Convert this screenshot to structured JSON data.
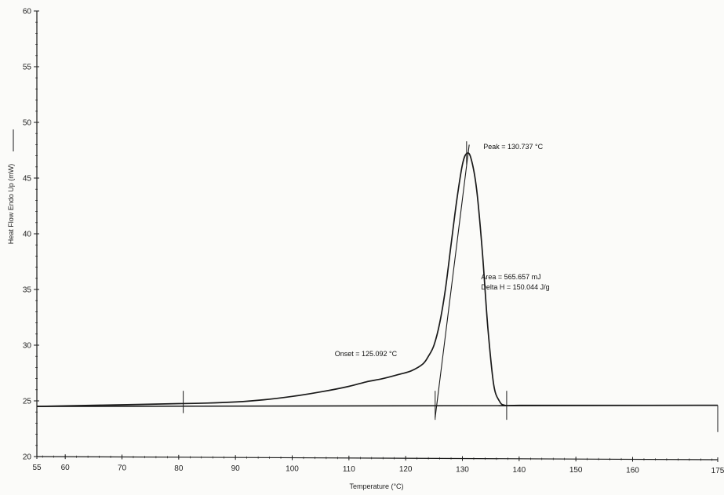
{
  "chart_data": {
    "type": "line",
    "xlabel": "Temperature (°C)",
    "ylabel": "Heat Flow Endo Up (mW)",
    "xlim": [
      55,
      175
    ],
    "ylim": [
      20,
      60
    ],
    "x_ticks": [
      55,
      60,
      70,
      80,
      90,
      100,
      110,
      120,
      130,
      140,
      150,
      160,
      175
    ],
    "y_ticks": [
      20,
      25,
      30,
      35,
      40,
      45,
      50,
      55,
      60
    ],
    "grid": false,
    "series": [
      {
        "x": [
          55,
          60,
          70,
          80,
          85,
          90,
          95,
          100,
          105,
          110,
          113,
          116,
          119,
          121,
          123,
          124,
          125,
          126,
          127,
          128,
          129,
          130,
          130.737,
          131.5,
          132.5,
          133.5,
          134.5,
          135.5,
          136.5,
          137.5,
          140,
          150,
          160,
          175
        ],
        "y": [
          24.5,
          24.55,
          24.65,
          24.75,
          24.8,
          24.9,
          25.1,
          25.4,
          25.8,
          26.3,
          26.7,
          27.0,
          27.4,
          27.7,
          28.3,
          29.0,
          30.0,
          32.0,
          35.0,
          39.0,
          43.0,
          46.2,
          47.2,
          46.8,
          44.0,
          38.5,
          31.5,
          26.5,
          25.0,
          24.6,
          24.6,
          24.6,
          24.6,
          24.6
        ]
      }
    ],
    "baseline": {
      "x": [
        55,
        175
      ],
      "y": [
        24.5,
        24.6
      ]
    },
    "onset_tangent": {
      "x": [
        125.2,
        131.2
      ],
      "y": [
        23.5,
        48.0
      ]
    },
    "markers": [
      {
        "x": 80.8,
        "y1": 23.9,
        "y2": 25.9
      },
      {
        "x": 125.2,
        "y1": 23.3,
        "y2": 25.9
      },
      {
        "x": 130.737,
        "y1": 46.2,
        "y2": 48.3
      },
      {
        "x": 137.8,
        "y1": 23.3,
        "y2": 25.9
      },
      {
        "x": 175,
        "y1": 22.2,
        "y2": 24.6
      }
    ],
    "annotations": [
      {
        "lines": [
          "Peak = 130.737 °C"
        ],
        "x": 133.7,
        "y": 47.6
      },
      {
        "lines": [
          "Area = 565.657 mJ",
          "Delta H = 150.044 J/g"
        ],
        "x": 133.3,
        "y": 35.9
      },
      {
        "lines": [
          "Onset = 125.092 °C"
        ],
        "x": 107.5,
        "y": 29.0
      }
    ]
  }
}
